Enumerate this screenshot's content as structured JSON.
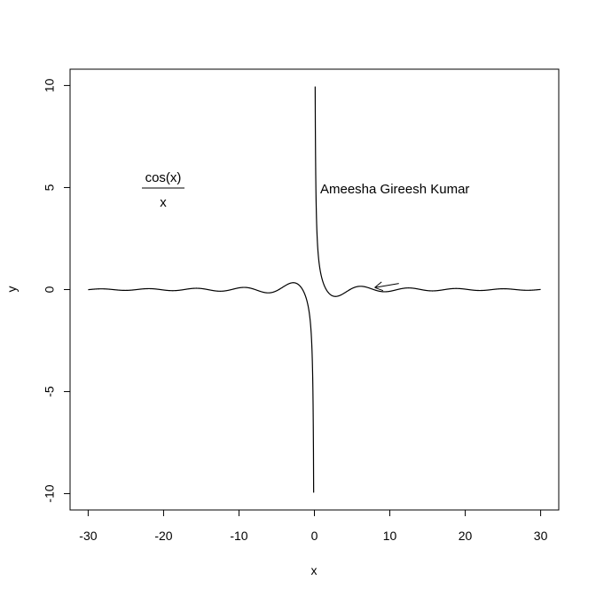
{
  "chart_data": {
    "type": "line",
    "title": "",
    "xlabel": "x",
    "ylabel": "y",
    "xlim": [
      -32.4,
      32.4
    ],
    "ylim": [
      -10.8,
      10.8
    ],
    "xticks": [
      "-30",
      "-20",
      "-10",
      "0",
      "10",
      "20",
      "30"
    ],
    "yticks": [
      "-10",
      "-5",
      "0",
      "5",
      "10"
    ],
    "grid": false,
    "series": [
      {
        "function": "cos(x)/x",
        "x_range": [
          -30,
          30
        ],
        "clip_y": [
          -10,
          10
        ],
        "color": "#000000"
      }
    ],
    "annotations": {
      "author": "Ameesha Gireesh Kumar",
      "formula_numerator": "cos(x)",
      "formula_denominator": "x",
      "arrow": {
        "from": [
          11.2,
          0.3
        ],
        "to": [
          8,
          0.1
        ]
      }
    }
  }
}
